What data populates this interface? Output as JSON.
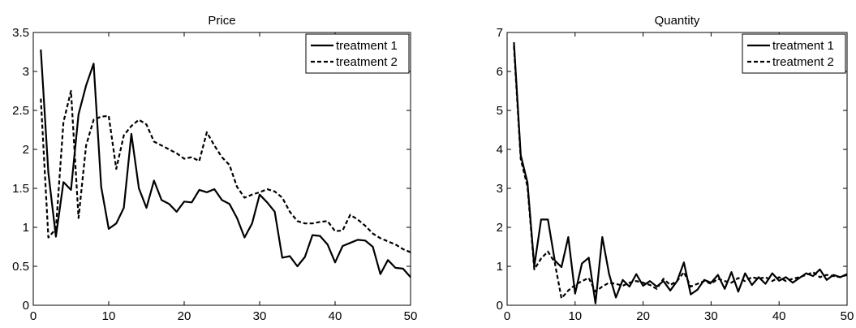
{
  "chart_data": [
    {
      "type": "line",
      "title": "Price",
      "xlabel": "",
      "ylabel": "",
      "xlim": [
        0,
        50
      ],
      "ylim": [
        0,
        3.5
      ],
      "xticks": [
        0,
        10,
        20,
        30,
        40,
        50
      ],
      "yticks": [
        0,
        0.5,
        1,
        1.5,
        2,
        2.5,
        3,
        3.5
      ],
      "xtick_labels": [
        "0",
        "10",
        "20",
        "30",
        "40",
        "50"
      ],
      "ytick_labels": [
        "0",
        "0.5",
        "1",
        "1.5",
        "2",
        "2.5",
        "3",
        "3.5"
      ],
      "grid": false,
      "legend_position": "top-right",
      "x": [
        1,
        2,
        3,
        4,
        5,
        6,
        7,
        8,
        9,
        10,
        11,
        12,
        13,
        14,
        15,
        16,
        17,
        18,
        19,
        20,
        21,
        22,
        23,
        24,
        25,
        26,
        27,
        28,
        29,
        30,
        31,
        32,
        33,
        34,
        35,
        36,
        37,
        38,
        39,
        40,
        41,
        42,
        43,
        44,
        45,
        46,
        47,
        48,
        49,
        50
      ],
      "series": [
        {
          "name": "treatment 1",
          "style": "solid",
          "color": "#000000",
          "values": [
            3.28,
            1.7,
            0.88,
            1.58,
            1.48,
            2.45,
            2.82,
            3.1,
            1.52,
            0.98,
            1.05,
            1.25,
            2.2,
            1.5,
            1.25,
            1.6,
            1.35,
            1.3,
            1.2,
            1.33,
            1.32,
            1.48,
            1.45,
            1.49,
            1.35,
            1.3,
            1.12,
            0.87,
            1.05,
            1.42,
            1.32,
            1.2,
            0.61,
            0.63,
            0.5,
            0.62,
            0.9,
            0.89,
            0.78,
            0.55,
            0.76,
            0.8,
            0.84,
            0.83,
            0.75,
            0.4,
            0.58,
            0.48,
            0.47,
            0.36
          ]
        },
        {
          "name": "treatment 2",
          "style": "dashed",
          "color": "#000000",
          "values": [
            2.65,
            0.87,
            0.98,
            2.35,
            2.75,
            1.12,
            2.05,
            2.38,
            2.42,
            2.43,
            1.75,
            2.18,
            2.3,
            2.38,
            2.32,
            2.1,
            2.05,
            2.0,
            1.95,
            1.88,
            1.9,
            1.85,
            2.22,
            2.05,
            1.9,
            1.8,
            1.52,
            1.38,
            1.42,
            1.45,
            1.49,
            1.46,
            1.38,
            1.2,
            1.08,
            1.05,
            1.05,
            1.07,
            1.08,
            0.95,
            0.96,
            1.16,
            1.1,
            1.02,
            0.92,
            0.86,
            0.82,
            0.78,
            0.72,
            0.68
          ]
        }
      ]
    },
    {
      "type": "line",
      "title": "Quantity",
      "xlabel": "",
      "ylabel": "",
      "xlim": [
        0,
        50
      ],
      "ylim": [
        0,
        7
      ],
      "xticks": [
        0,
        10,
        20,
        30,
        40,
        50
      ],
      "yticks": [
        0,
        1,
        2,
        3,
        4,
        5,
        6,
        7
      ],
      "xtick_labels": [
        "0",
        "10",
        "20",
        "30",
        "40",
        "50"
      ],
      "ytick_labels": [
        "0",
        "1",
        "2",
        "3",
        "4",
        "5",
        "6",
        "7"
      ],
      "grid": false,
      "legend_position": "top-right",
      "x": [
        1,
        2,
        3,
        4,
        5,
        6,
        7,
        8,
        9,
        10,
        11,
        12,
        13,
        14,
        15,
        16,
        17,
        18,
        19,
        20,
        21,
        22,
        23,
        24,
        25,
        26,
        27,
        28,
        29,
        30,
        31,
        32,
        33,
        34,
        35,
        36,
        37,
        38,
        39,
        40,
        41,
        42,
        43,
        44,
        45,
        46,
        47,
        48,
        49,
        50
      ],
      "series": [
        {
          "name": "treatment 1",
          "style": "solid",
          "color": "#000000",
          "values": [
            6.75,
            3.85,
            3.15,
            1.0,
            2.2,
            2.2,
            1.15,
            0.98,
            1.75,
            0.3,
            1.07,
            1.22,
            0.05,
            1.75,
            0.8,
            0.2,
            0.65,
            0.48,
            0.8,
            0.5,
            0.62,
            0.48,
            0.62,
            0.38,
            0.62,
            1.1,
            0.28,
            0.4,
            0.65,
            0.58,
            0.78,
            0.42,
            0.85,
            0.35,
            0.82,
            0.52,
            0.72,
            0.55,
            0.82,
            0.63,
            0.72,
            0.58,
            0.7,
            0.82,
            0.75,
            0.92,
            0.65,
            0.78,
            0.72,
            0.8
          ]
        },
        {
          "name": "treatment 2",
          "style": "dashed",
          "color": "#000000",
          "values": [
            6.65,
            3.75,
            3.05,
            0.92,
            1.2,
            1.38,
            1.1,
            0.18,
            0.38,
            0.52,
            0.62,
            0.7,
            0.35,
            0.48,
            0.58,
            0.55,
            0.5,
            0.58,
            0.62,
            0.58,
            0.52,
            0.42,
            0.68,
            0.52,
            0.62,
            0.85,
            0.48,
            0.55,
            0.62,
            0.55,
            0.68,
            0.62,
            0.58,
            0.7,
            0.62,
            0.72,
            0.68,
            0.72,
            0.62,
            0.72,
            0.62,
            0.68,
            0.72,
            0.78,
            0.85,
            0.72,
            0.78,
            0.75,
            0.72,
            0.78
          ]
        }
      ]
    }
  ]
}
